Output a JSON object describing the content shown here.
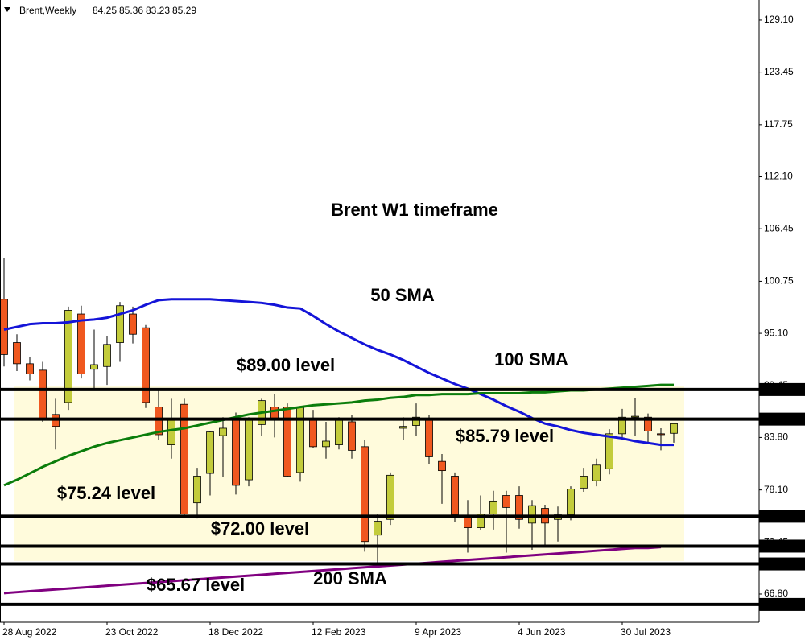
{
  "chart_data": {
    "type": "candlestick",
    "title": "Brent W1 timeframe",
    "symbol": "Brent,Weekly",
    "categories": [
      "28 Aug 2022",
      null,
      null,
      null,
      null,
      null,
      null,
      null,
      "23 Oct 2022",
      null,
      null,
      null,
      null,
      null,
      null,
      null,
      "18 Dec 2022",
      null,
      null,
      null,
      null,
      null,
      null,
      null,
      "12 Feb 2023",
      null,
      null,
      null,
      null,
      null,
      null,
      null,
      "9 Apr 2023",
      null,
      null,
      null,
      null,
      null,
      null,
      null,
      "4 Jun 2023",
      null,
      null,
      null,
      null,
      null,
      null,
      null,
      "30 Jul 2023",
      null,
      null,
      null,
      null
    ],
    "open": [
      98.8,
      94.1,
      91.8,
      91.1,
      86.3,
      87.6,
      97.2,
      91.2,
      91.5,
      94.1,
      97.2,
      95.7,
      87.1,
      83.0,
      87.4,
      76.7,
      79.9,
      84.0,
      85.7,
      79.2,
      85.2,
      87.1,
      87.1,
      80.0,
      85.7,
      82.8,
      83.0,
      85.5,
      82.8,
      73.2,
      74.9,
      84.8,
      85.1,
      85.9,
      81.2,
      79.6,
      75.2,
      74.0,
      75.5,
      77.5,
      77.5,
      74.5,
      76.1,
      74.9,
      75.4,
      78.3,
      79.1,
      80.4,
      84.2,
      86.0,
      86.0,
      84.2,
      84.25
    ],
    "high": [
      103.3,
      95.0,
      92.5,
      92.0,
      88.0,
      98.0,
      98.1,
      95.5,
      94.8,
      98.5,
      98.0,
      96.0,
      89.0,
      88.0,
      88.0,
      80.5,
      84.5,
      86.0,
      86.5,
      86.0,
      88.0,
      88.5,
      87.5,
      87.2,
      86.8,
      85.5,
      86.0,
      86.2,
      83.5,
      75.5,
      80.0,
      86.0,
      87.5,
      86.2,
      82.0,
      80.0,
      77.0,
      77.5,
      78.0,
      78.0,
      78.5,
      77.0,
      76.5,
      76.3,
      78.5,
      80.5,
      81.5,
      84.7,
      86.9,
      88.1,
      86.4,
      84.8,
      85.36
    ],
    "low": [
      91.5,
      91.0,
      90.0,
      85.5,
      82.5,
      86.8,
      90.2,
      89.0,
      89.5,
      92.0,
      94.0,
      87.0,
      83.5,
      81.5,
      75.2,
      75.0,
      77.5,
      79.5,
      77.6,
      78.5,
      84.0,
      83.8,
      79.5,
      79.0,
      82.7,
      81.5,
      82.5,
      81.5,
      71.4,
      70.1,
      74.3,
      83.5,
      84.0,
      80.9,
      76.6,
      74.6,
      71.3,
      73.7,
      73.8,
      71.3,
      73.9,
      71.6,
      72.0,
      72.5,
      74.8,
      77.9,
      78.5,
      79.8,
      83.5,
      84.0,
      83.3,
      82.4,
      83.23
    ],
    "close": [
      92.8,
      91.8,
      90.7,
      85.9,
      85.0,
      97.6,
      90.7,
      91.7,
      93.9,
      98.1,
      95.0,
      87.6,
      84.1,
      85.9,
      75.5,
      79.6,
      84.4,
      84.8,
      78.6,
      85.7,
      87.8,
      85.7,
      79.6,
      87.1,
      82.8,
      83.4,
      85.7,
      82.4,
      72.5,
      74.7,
      79.7,
      85.0,
      86.0,
      81.7,
      80.2,
      75.4,
      74.0,
      75.5,
      76.9,
      76.2,
      74.9,
      76.4,
      74.5,
      75.4,
      78.2,
      79.6,
      80.8,
      84.2,
      86.0,
      86.1,
      84.5,
      84.1,
      85.29
    ],
    "up_color": "#c3cc3b",
    "down_color": "#f0581f",
    "series": [
      {
        "name": "50 SMA",
        "color": "#1414d8",
        "values": [
          95.5,
          95.8,
          96.1,
          96.2,
          96.2,
          96.3,
          96.5,
          96.6,
          96.8,
          97.2,
          97.6,
          98.2,
          98.7,
          98.8,
          98.8,
          98.8,
          98.8,
          98.7,
          98.6,
          98.5,
          98.4,
          98.2,
          97.9,
          97.8,
          97.0,
          96.1,
          95.3,
          94.6,
          93.9,
          93.3,
          92.8,
          92.2,
          91.5,
          90.8,
          90.2,
          89.6,
          89.1,
          88.5,
          87.9,
          87.2,
          86.6,
          85.9,
          85.3,
          85.0,
          84.6,
          84.3,
          84.1,
          83.9,
          83.7,
          83.4,
          83.2,
          83.0,
          83.0
        ]
      },
      {
        "name": "100 SMA",
        "color": "#0b7d0b",
        "values": [
          78.6,
          79.2,
          79.9,
          80.6,
          81.2,
          81.8,
          82.3,
          82.8,
          83.2,
          83.5,
          83.8,
          84.1,
          84.4,
          84.6,
          84.8,
          85.1,
          85.4,
          85.7,
          86.0,
          86.3,
          86.5,
          86.7,
          86.9,
          87.1,
          87.3,
          87.4,
          87.5,
          87.6,
          87.8,
          87.9,
          88.1,
          88.2,
          88.4,
          88.4,
          88.5,
          88.5,
          88.5,
          88.6,
          88.6,
          88.6,
          88.6,
          88.7,
          88.7,
          88.8,
          88.9,
          88.9,
          89.0,
          89.1,
          89.2,
          89.3,
          89.4,
          89.5,
          89.5
        ]
      },
      {
        "name": "200 SMA",
        "color": "#800080",
        "values": [
          66.9,
          67.0,
          67.1,
          67.2,
          67.3,
          67.4,
          67.5,
          67.6,
          67.7,
          67.8,
          67.9,
          68.0,
          68.1,
          68.2,
          68.3,
          68.4,
          68.5,
          68.6,
          68.7,
          68.8,
          68.9,
          69.0,
          69.1,
          69.2,
          69.3,
          69.4,
          69.5,
          69.6,
          69.7,
          69.8,
          69.9,
          70.0,
          70.1,
          70.2,
          70.3,
          70.4,
          70.5,
          70.6,
          70.7,
          70.8,
          70.9,
          71.0,
          71.1,
          71.2,
          71.3,
          71.4,
          71.5,
          71.6,
          71.7,
          71.8,
          71.8,
          71.9,
          null
        ]
      }
    ],
    "ylim": [
      63.74,
      131.28
    ],
    "yticks": [
      {
        "value": 129.1,
        "label": "129.10"
      },
      {
        "value": 123.45,
        "label": "123.45"
      },
      {
        "value": 117.75,
        "label": "117.75"
      },
      {
        "value": 112.1,
        "label": "112.10"
      },
      {
        "value": 106.45,
        "label": "106.45"
      },
      {
        "value": 100.75,
        "label": "100.75"
      },
      {
        "value": 95.1,
        "label": "95.10"
      },
      {
        "value": 89.45,
        "label": "89.45"
      },
      {
        "value": 83.8,
        "label": "83.80"
      },
      {
        "value": 78.1,
        "label": "78.10"
      },
      {
        "value": 72.45,
        "label": "72.45"
      },
      {
        "value": 66.8,
        "label": "66.80"
      }
    ],
    "levels": [
      {
        "value": 89,
        "label": "89.00",
        "text": "$89.00 level"
      },
      {
        "value": 85.79,
        "text": "$85.79 level"
      },
      {
        "value": 75.24,
        "text": "$75.24 level"
      },
      {
        "value": 72,
        "label": "72.00",
        "text": "$72.00 level"
      },
      {
        "value": 70.07
      },
      {
        "value": 65.67,
        "text": "$65.67 level"
      }
    ]
  }
}
